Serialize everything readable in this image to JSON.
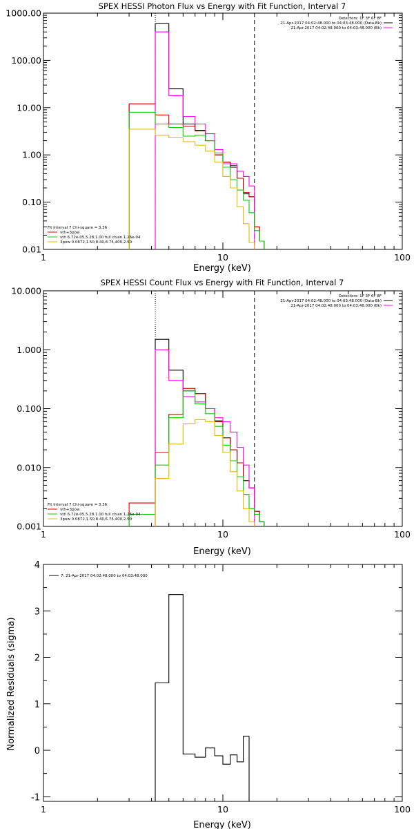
{
  "colors": {
    "data": "#000000",
    "model": "#cc0000",
    "bk": "#ff00ff",
    "vth": "#00cc00",
    "bpow": "#e6b800"
  },
  "chart_data": [
    {
      "type": "line",
      "title": "SPEX HESSI Photon Flux vs Energy with Fit Function, Interval 7",
      "xlabel": "Energy (keV)",
      "ylabel": "",
      "x_scale": "log",
      "y_scale": "log",
      "xlim": [
        1,
        100
      ],
      "ylim": [
        0.01,
        1000
      ],
      "xtick_labels": [
        "1",
        "10",
        "100"
      ],
      "ytick_labels": [
        "0.01",
        "0.10",
        "1.00",
        "10.00",
        "100.00",
        "1000.00"
      ],
      "vlines": [
        4.2,
        15.0
      ],
      "header_lines": [
        "Detectors: 1F 3F 6F 8F",
        "21-Apr-2017 04:02:48.000 to 04:03:48.000 (Data-Bk)",
        "21-Apr-2017 04:02:48.000 to 04:03:48.000 (Bk)"
      ],
      "fit_lines": [
        "Fit Interval 7   Chi-square = 3.36",
        "vth+3pow",
        "vth 6.72e-05,5.28,1.00  full chian 1.26e-04",
        "3pow 0.0872,1.50,8.40,6.75,400,2.50"
      ],
      "edges": [
        3.0,
        4.2,
        5.0,
        6.0,
        7.0,
        8.0,
        9.0,
        10.0,
        11.0,
        12.0,
        13.0,
        14.0,
        15.0,
        16.0,
        17.0,
        18.0
      ],
      "series": [
        {
          "name": "Data-Bk",
          "color": "data",
          "values": [
            12.0,
            600.0,
            25.0,
            4.5,
            3.3,
            2.0,
            1.0,
            0.7,
            0.55,
            0.32,
            0.15,
            0.13,
            0.03,
            0.015,
            0.0
          ]
        },
        {
          "name": "vth+3pow",
          "color": "model",
          "values": [
            12.0,
            7.0,
            4.5,
            4.0,
            3.2,
            2.0,
            1.0,
            0.7,
            0.6,
            0.32,
            0.16,
            0.13,
            0.03,
            0.015,
            0.0
          ]
        },
        {
          "name": "Bk",
          "color": "bk",
          "values": [
            0.0,
            400.0,
            18.0,
            6.5,
            4.5,
            2.8,
            1.3,
            0.65,
            0.65,
            0.45,
            0.35,
            0.22,
            0.0,
            0.0,
            0.0
          ]
        },
        {
          "name": "vth",
          "color": "vth",
          "values": [
            8.0,
            4.5,
            3.8,
            2.5,
            2.6,
            2.0,
            1.1,
            0.55,
            0.3,
            0.18,
            0.11,
            0.06,
            0.025,
            0.015,
            0.0
          ]
        },
        {
          "name": "3pow",
          "color": "bpow",
          "values": [
            3.5,
            2.6,
            2.3,
            1.9,
            1.6,
            1.2,
            0.7,
            0.35,
            0.2,
            0.08,
            0.035,
            0.014,
            0.0,
            0.0,
            0.0
          ]
        }
      ]
    },
    {
      "type": "line",
      "title": "SPEX HESSI Count Flux vs Energy with Fit Function, Interval 7",
      "xlabel": "Energy (keV)",
      "ylabel": "",
      "x_scale": "log",
      "y_scale": "log",
      "xlim": [
        1,
        100
      ],
      "ylim": [
        0.001,
        10
      ],
      "xtick_labels": [
        "1",
        "10",
        "100"
      ],
      "ytick_labels": [
        "0.001",
        "0.010",
        "0.100",
        "1.000",
        "10.000"
      ],
      "vlines": [
        4.2,
        15.0
      ],
      "header_lines": [
        "Detectors: 1F 3F 6F 8F",
        "21-Apr-2017 04:02:48.000 to 04:03:48.000 (Data-Bk)",
        "21-Apr-2017 04:02:48.000 to 04:03:48.000 (Bk)"
      ],
      "fit_lines": [
        "Fit Interval 7   Chi-square = 3.36",
        "vth+3pow",
        "vth 6.72e-05,5.28,1.00  full chian 1.26e-04",
        "3pow 0.0872,1.50,8.40,6.75,400,2.50"
      ],
      "edges": [
        3.0,
        4.2,
        5.0,
        6.0,
        7.0,
        8.0,
        9.0,
        10.0,
        11.0,
        12.0,
        13.0,
        14.0,
        15.0,
        16.0,
        17.0,
        18.0
      ],
      "series": [
        {
          "name": "Data-Bk",
          "color": "data",
          "values": [
            0.0,
            1.5,
            0.45,
            0.2,
            0.18,
            0.1,
            0.062,
            0.032,
            0.02,
            0.012,
            0.006,
            0.0045,
            0.0018,
            0.0012,
            0.0
          ],
          "note": ""
        },
        {
          "name": "vth+3pow",
          "color": "model",
          "values": [
            0.0025,
            0.018,
            0.08,
            0.22,
            0.18,
            0.1,
            0.06,
            0.032,
            0.02,
            0.012,
            0.006,
            0.0045,
            0.0018,
            0.0012,
            0.0
          ]
        },
        {
          "name": "Bk",
          "color": "bk",
          "values": [
            0.0,
            1.0,
            0.3,
            0.16,
            0.13,
            0.1,
            0.07,
            0.06,
            0.04,
            0.022,
            0.011,
            0.0045,
            0.0,
            0.0,
            0.0
          ]
        },
        {
          "name": "vth",
          "color": "vth",
          "values": [
            0.0016,
            0.011,
            0.07,
            0.2,
            0.12,
            0.082,
            0.05,
            0.024,
            0.013,
            0.007,
            0.0035,
            0.002,
            0.0016,
            0.0012,
            0.0
          ]
        },
        {
          "name": "3pow",
          "color": "bpow",
          "values": [
            0.0,
            0.0065,
            0.025,
            0.055,
            0.065,
            0.06,
            0.035,
            0.018,
            0.0085,
            0.004,
            0.002,
            0.0012,
            0.0,
            0.0,
            0.0
          ]
        }
      ]
    },
    {
      "type": "line",
      "title": "",
      "xlabel": "Energy (keV)",
      "ylabel": "Normalized Residuals (sigma)",
      "x_scale": "log",
      "y_scale": "linear",
      "xlim": [
        1,
        100
      ],
      "ylim": [
        -1.1,
        4
      ],
      "xtick_labels": [
        "1",
        "10",
        "100"
      ],
      "ytick_labels": [
        "-1",
        "0",
        "1",
        "2",
        "3",
        "4"
      ],
      "legend_line": "7: 21-Apr-2017 04:02:48.000 to 04:03:48.000",
      "edges": [
        4.2,
        5.0,
        6.0,
        7.0,
        8.0,
        9.0,
        10.0,
        11.0,
        12.0,
        13.0,
        14.0,
        15.0
      ],
      "series": [
        {
          "name": "",
          "color": "data",
          "values": [
            1.45,
            3.35,
            -0.08,
            -0.15,
            0.05,
            -0.12,
            -0.3,
            -0.1,
            -0.25,
            0.3,
            -1.2
          ]
        }
      ]
    }
  ]
}
